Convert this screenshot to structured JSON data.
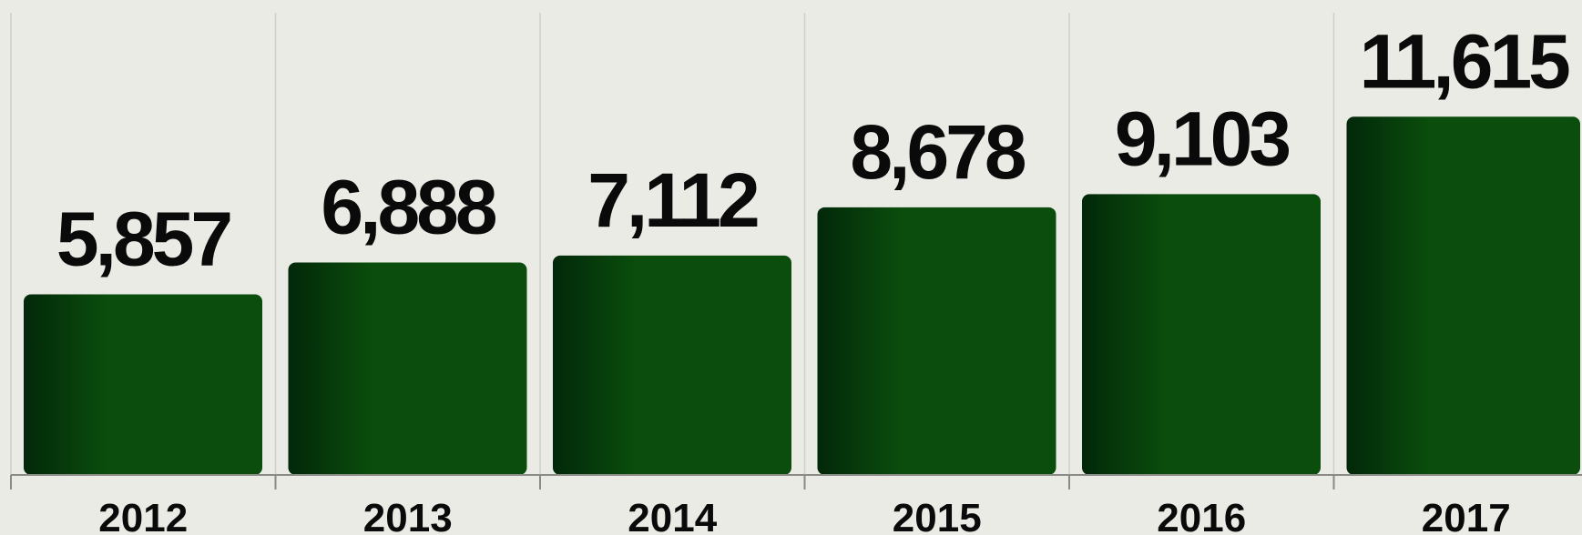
{
  "chart_data": {
    "type": "bar",
    "categories": [
      "2012",
      "2013",
      "2014",
      "2015",
      "2016",
      "2017"
    ],
    "values": [
      5857,
      6888,
      7112,
      8678,
      9103,
      11615
    ],
    "value_labels": [
      "5,857",
      "6,888",
      "7,112",
      "8,678",
      "9,103",
      "11,615"
    ],
    "title": "",
    "xlabel": "",
    "ylabel": "",
    "grid": "vertical separators",
    "colors": {
      "bar_dark": "#02280a",
      "bar_light": "#0a4d0c",
      "background": "#ebebe6",
      "grid": "#cfcfca",
      "axis": "#8a8a86",
      "text": "#0a0a0a"
    }
  }
}
